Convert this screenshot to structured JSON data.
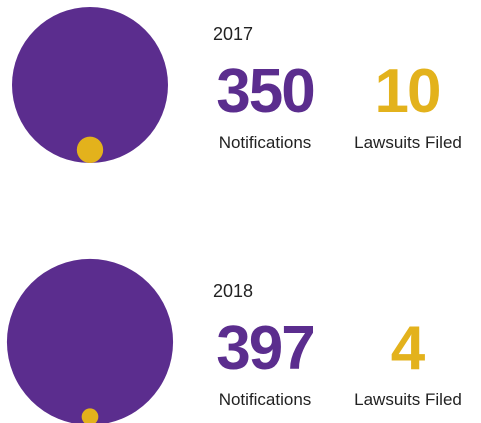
{
  "chart_data": [
    {
      "type": "bubble",
      "title": "2017",
      "series": [
        {
          "name": "Notifications",
          "color": "#5b2d8e",
          "values": [
            350
          ]
        },
        {
          "name": "Lawsuits Filed",
          "color": "#e3b21c",
          "values": [
            10
          ]
        }
      ]
    },
    {
      "type": "bubble",
      "title": "2018",
      "series": [
        {
          "name": "Notifications",
          "color": "#5b2d8e",
          "values": [
            397
          ]
        },
        {
          "name": "Lawsuits Filed",
          "color": "#e3b21c",
          "values": [
            4
          ]
        }
      ]
    }
  ]
}
